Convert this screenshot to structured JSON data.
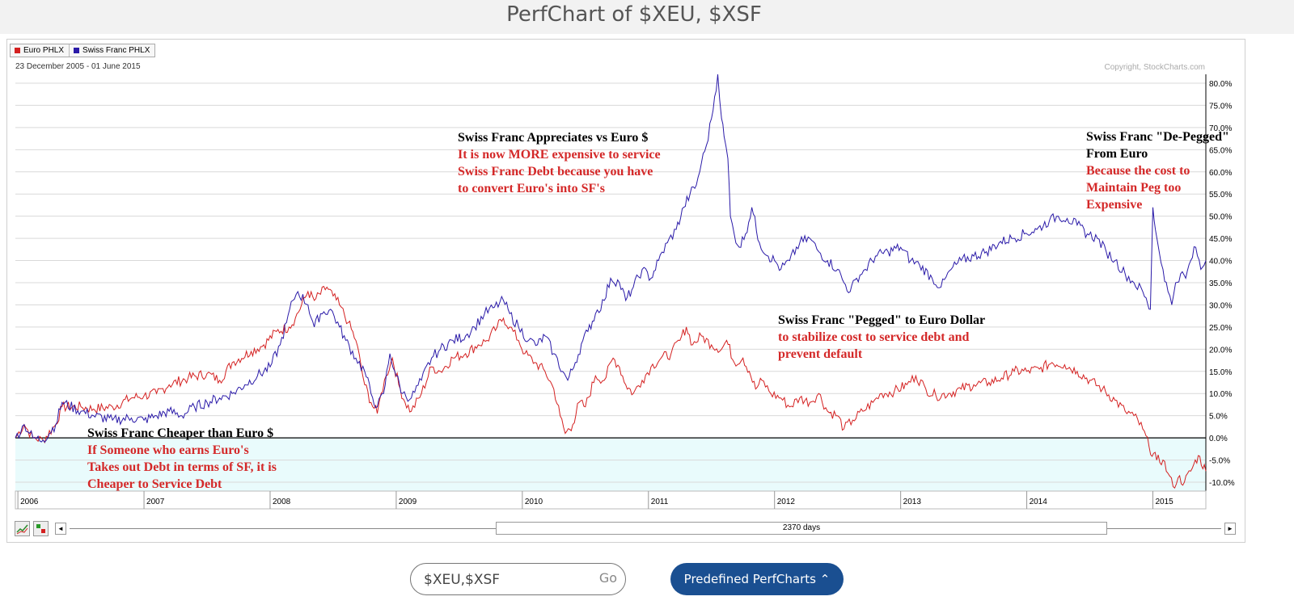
{
  "page_title": "PerfChart of $XEU, $XSF",
  "legend": [
    {
      "label": "Euro PHLX",
      "color": "#d42020"
    },
    {
      "label": "Swiss Franc PHLX",
      "color": "#2a1aa8"
    }
  ],
  "date_range": "23 December 2005 - 01 June 2015",
  "copyright": "Copyright, StockCharts.com",
  "scrollbar": {
    "label": "2370 days",
    "left_arrow": "◄",
    "right_arrow": "►"
  },
  "search": {
    "value": "$XEU,$XSF",
    "go_label": "Go"
  },
  "predefined_button": "Predefined PerfCharts ⌃",
  "annotations": [
    {
      "lines": [
        {
          "text": "Swiss Franc Cheaper than Euro $",
          "color": "#000000"
        },
        {
          "text": "If Someone who earns Euro's",
          "color": "#d42828"
        },
        {
          "text": "Takes out Debt in terms of SF, it is",
          "color": "#d42828"
        },
        {
          "text": "Cheaper to Service Debt",
          "color": "#d42828"
        }
      ]
    },
    {
      "lines": [
        {
          "text": "Swiss Franc Appreciates vs Euro $",
          "color": "#000000"
        },
        {
          "text": "It is now MORE expensive to service",
          "color": "#d42828"
        },
        {
          "text": "Swiss Franc Debt because you have",
          "color": "#d42828"
        },
        {
          "text": "to convert Euro's into SF's",
          "color": "#d42828"
        }
      ]
    },
    {
      "lines": [
        {
          "text": "Swiss Franc \"Pegged\" to Euro Dollar",
          "color": "#000000"
        },
        {
          "text": "to stabilize cost to service debt and",
          "color": "#d42828"
        },
        {
          "text": "prevent default",
          "color": "#d42828"
        }
      ]
    },
    {
      "lines": [
        {
          "text": "Swiss Franc \"De-Pegged\"",
          "color": "#000000"
        },
        {
          "text": "From Euro",
          "color": "#000000"
        },
        {
          "text": "Because the cost to",
          "color": "#d42828"
        },
        {
          "text": "Maintain Peg too",
          "color": "#d42828"
        },
        {
          "text": "Expensive",
          "color": "#d42828"
        }
      ]
    }
  ],
  "chart_data": {
    "type": "line",
    "y_unit": "%",
    "ylim": [
      -12,
      82
    ],
    "y_ticks": [
      -10,
      -5,
      0,
      5,
      10,
      15,
      20,
      25,
      30,
      35,
      40,
      45,
      50,
      55,
      60,
      65,
      70,
      75,
      80
    ],
    "y_tick_labels": [
      "-10.0%",
      "-5.0%",
      "0.0%",
      "5.0%",
      "10.0%",
      "15.0%",
      "20.0%",
      "25.0%",
      "30.0%",
      "35.0%",
      "40.0%",
      "45.0%",
      "50.0%",
      "55.0%",
      "60.0%",
      "65.0%",
      "70.0%",
      "75.0%",
      "80.0%"
    ],
    "xlim": [
      2005.98,
      2015.42
    ],
    "x_tick_labels": [
      "2006",
      "2007",
      "2008",
      "2009",
      "2010",
      "2011",
      "2012",
      "2013",
      "2014",
      "2015"
    ],
    "x_ticks": [
      2006.0,
      2007.0,
      2008.0,
      2009.0,
      2010.0,
      2011.0,
      2012.0,
      2013.0,
      2014.0,
      2015.0
    ],
    "grid": true,
    "legend_position": "top-left",
    "colors": {
      "background_above": "#ffffff",
      "background_below": "#e9fbfc",
      "grid": "#d9d9d9",
      "zero_line": "#000000"
    },
    "series": [
      {
        "name": "Euro PHLX",
        "color": "#d42020",
        "points": [
          [
            2005.98,
            0
          ],
          [
            2006.05,
            3
          ],
          [
            2006.12,
            0
          ],
          [
            2006.2,
            -0.5
          ],
          [
            2006.3,
            3
          ],
          [
            2006.35,
            7
          ],
          [
            2006.5,
            7
          ],
          [
            2006.6,
            6.5
          ],
          [
            2006.75,
            7
          ],
          [
            2006.9,
            9
          ],
          [
            2007.0,
            9.5
          ],
          [
            2007.1,
            10
          ],
          [
            2007.2,
            12
          ],
          [
            2007.35,
            13.5
          ],
          [
            2007.5,
            14.5
          ],
          [
            2007.6,
            13
          ],
          [
            2007.7,
            17
          ],
          [
            2007.85,
            19.5
          ],
          [
            2007.95,
            21
          ],
          [
            2008.05,
            24
          ],
          [
            2008.15,
            25
          ],
          [
            2008.2,
            27
          ],
          [
            2008.3,
            33
          ],
          [
            2008.35,
            31
          ],
          [
            2008.45,
            34
          ],
          [
            2008.5,
            32
          ],
          [
            2008.55,
            30
          ],
          [
            2008.62,
            26
          ],
          [
            2008.68,
            22
          ],
          [
            2008.75,
            12
          ],
          [
            2008.8,
            8
          ],
          [
            2008.85,
            5.5
          ],
          [
            2008.88,
            10
          ],
          [
            2008.92,
            14
          ],
          [
            2008.97,
            18
          ],
          [
            2009.02,
            12
          ],
          [
            2009.07,
            8
          ],
          [
            2009.12,
            6
          ],
          [
            2009.2,
            10
          ],
          [
            2009.28,
            16
          ],
          [
            2009.35,
            15
          ],
          [
            2009.45,
            18
          ],
          [
            2009.55,
            19
          ],
          [
            2009.65,
            21
          ],
          [
            2009.72,
            22
          ],
          [
            2009.8,
            25
          ],
          [
            2009.85,
            27
          ],
          [
            2009.9,
            25
          ],
          [
            2009.97,
            22
          ],
          [
            2010.02,
            19
          ],
          [
            2010.1,
            17
          ],
          [
            2010.18,
            15
          ],
          [
            2010.25,
            11
          ],
          [
            2010.3,
            5
          ],
          [
            2010.34,
            1
          ],
          [
            2010.4,
            3
          ],
          [
            2010.45,
            8
          ],
          [
            2010.5,
            7
          ],
          [
            2010.58,
            14
          ],
          [
            2010.65,
            13
          ],
          [
            2010.72,
            18
          ],
          [
            2010.77,
            16
          ],
          [
            2010.82,
            12
          ],
          [
            2010.88,
            10
          ],
          [
            2010.95,
            13
          ],
          [
            2011.02,
            16
          ],
          [
            2011.1,
            18
          ],
          [
            2011.18,
            19
          ],
          [
            2011.25,
            22
          ],
          [
            2011.3,
            25
          ],
          [
            2011.35,
            21
          ],
          [
            2011.42,
            23
          ],
          [
            2011.5,
            21
          ],
          [
            2011.58,
            20
          ],
          [
            2011.62,
            22
          ],
          [
            2011.68,
            17
          ],
          [
            2011.75,
            18
          ],
          [
            2011.8,
            15
          ],
          [
            2011.85,
            11
          ],
          [
            2011.9,
            13
          ],
          [
            2011.97,
            10
          ],
          [
            2012.05,
            9
          ],
          [
            2012.12,
            7
          ],
          [
            2012.2,
            9
          ],
          [
            2012.28,
            8
          ],
          [
            2012.35,
            10
          ],
          [
            2012.42,
            6
          ],
          [
            2012.5,
            5
          ],
          [
            2012.55,
            2
          ],
          [
            2012.62,
            4
          ],
          [
            2012.7,
            6
          ],
          [
            2012.78,
            8
          ],
          [
            2012.85,
            10
          ],
          [
            2012.95,
            10.5
          ],
          [
            2013.05,
            12
          ],
          [
            2013.12,
            14
          ],
          [
            2013.2,
            11
          ],
          [
            2013.28,
            9.5
          ],
          [
            2013.38,
            10
          ],
          [
            2013.48,
            11
          ],
          [
            2013.58,
            12
          ],
          [
            2013.7,
            12.5
          ],
          [
            2013.8,
            13.5
          ],
          [
            2013.9,
            15
          ],
          [
            2014.0,
            15
          ],
          [
            2014.1,
            15.5
          ],
          [
            2014.2,
            17
          ],
          [
            2014.3,
            16.5
          ],
          [
            2014.4,
            15
          ],
          [
            2014.5,
            13
          ],
          [
            2014.6,
            11
          ],
          [
            2014.7,
            8.5
          ],
          [
            2014.78,
            6
          ],
          [
            2014.85,
            5
          ],
          [
            2014.92,
            2
          ],
          [
            2014.97,
            -2
          ],
          [
            2015.03,
            -5
          ],
          [
            2015.08,
            -5
          ],
          [
            2015.12,
            -8
          ],
          [
            2015.16,
            -11
          ],
          [
            2015.2,
            -9
          ],
          [
            2015.25,
            -10
          ],
          [
            2015.3,
            -7.5
          ],
          [
            2015.36,
            -4
          ],
          [
            2015.42,
            -7.5
          ]
        ]
      },
      {
        "name": "Swiss Franc PHLX",
        "color": "#2a1aa8",
        "points": [
          [
            2005.98,
            0
          ],
          [
            2006.05,
            3
          ],
          [
            2006.12,
            0
          ],
          [
            2006.2,
            -0.5
          ],
          [
            2006.3,
            3
          ],
          [
            2006.35,
            8
          ],
          [
            2006.5,
            6
          ],
          [
            2006.6,
            5
          ],
          [
            2006.75,
            4
          ],
          [
            2006.9,
            4.5
          ],
          [
            2007.0,
            4
          ],
          [
            2007.1,
            5
          ],
          [
            2007.2,
            6
          ],
          [
            2007.3,
            5
          ],
          [
            2007.4,
            7
          ],
          [
            2007.5,
            8
          ],
          [
            2007.6,
            9
          ],
          [
            2007.7,
            10
          ],
          [
            2007.8,
            12
          ],
          [
            2007.9,
            14
          ],
          [
            2008.0,
            16
          ],
          [
            2008.08,
            21
          ],
          [
            2008.13,
            26
          ],
          [
            2008.18,
            31
          ],
          [
            2008.22,
            33
          ],
          [
            2008.3,
            30
          ],
          [
            2008.35,
            25
          ],
          [
            2008.4,
            28
          ],
          [
            2008.48,
            29
          ],
          [
            2008.55,
            25
          ],
          [
            2008.6,
            22
          ],
          [
            2008.68,
            18
          ],
          [
            2008.75,
            15
          ],
          [
            2008.8,
            10
          ],
          [
            2008.85,
            7
          ],
          [
            2008.9,
            10
          ],
          [
            2008.95,
            19
          ],
          [
            2009.0,
            14
          ],
          [
            2009.05,
            10
          ],
          [
            2009.12,
            9
          ],
          [
            2009.2,
            13
          ],
          [
            2009.28,
            18
          ],
          [
            2009.35,
            20
          ],
          [
            2009.45,
            22
          ],
          [
            2009.55,
            23
          ],
          [
            2009.62,
            25
          ],
          [
            2009.7,
            28
          ],
          [
            2009.78,
            29.5
          ],
          [
            2009.85,
            31
          ],
          [
            2009.9,
            28
          ],
          [
            2009.97,
            25
          ],
          [
            2010.05,
            22
          ],
          [
            2010.12,
            21
          ],
          [
            2010.18,
            23
          ],
          [
            2010.25,
            19
          ],
          [
            2010.32,
            15
          ],
          [
            2010.36,
            13
          ],
          [
            2010.42,
            17
          ],
          [
            2010.48,
            22
          ],
          [
            2010.52,
            24
          ],
          [
            2010.58,
            28
          ],
          [
            2010.65,
            31
          ],
          [
            2010.7,
            36
          ],
          [
            2010.77,
            35
          ],
          [
            2010.82,
            31
          ],
          [
            2010.88,
            34
          ],
          [
            2010.95,
            38
          ],
          [
            2011.02,
            36
          ],
          [
            2011.08,
            40
          ],
          [
            2011.15,
            44
          ],
          [
            2011.22,
            47
          ],
          [
            2011.28,
            52
          ],
          [
            2011.33,
            55
          ],
          [
            2011.38,
            57
          ],
          [
            2011.42,
            62
          ],
          [
            2011.46,
            66
          ],
          [
            2011.5,
            72
          ],
          [
            2011.55,
            82
          ],
          [
            2011.58,
            72
          ],
          [
            2011.6,
            68
          ],
          [
            2011.63,
            63
          ],
          [
            2011.65,
            50
          ],
          [
            2011.68,
            46
          ],
          [
            2011.72,
            43
          ],
          [
            2011.77,
            46
          ],
          [
            2011.82,
            52
          ],
          [
            2011.88,
            44
          ],
          [
            2011.95,
            41
          ],
          [
            2012.0,
            40
          ],
          [
            2012.05,
            38
          ],
          [
            2012.12,
            40
          ],
          [
            2012.2,
            44
          ],
          [
            2012.28,
            45
          ],
          [
            2012.35,
            42
          ],
          [
            2012.42,
            40
          ],
          [
            2012.5,
            38
          ],
          [
            2012.55,
            35
          ],
          [
            2012.6,
            33
          ],
          [
            2012.65,
            36
          ],
          [
            2012.72,
            38
          ],
          [
            2012.8,
            41
          ],
          [
            2012.9,
            42
          ],
          [
            2013.0,
            43
          ],
          [
            2013.08,
            40
          ],
          [
            2013.15,
            39
          ],
          [
            2013.25,
            36
          ],
          [
            2013.32,
            34
          ],
          [
            2013.4,
            38
          ],
          [
            2013.48,
            40
          ],
          [
            2013.58,
            41
          ],
          [
            2013.68,
            42
          ],
          [
            2013.78,
            44
          ],
          [
            2013.88,
            45
          ],
          [
            2013.98,
            46
          ],
          [
            2014.08,
            47
          ],
          [
            2014.18,
            49
          ],
          [
            2014.25,
            50
          ],
          [
            2014.32,
            49.5
          ],
          [
            2014.4,
            48
          ],
          [
            2014.48,
            46
          ],
          [
            2014.56,
            45
          ],
          [
            2014.63,
            42
          ],
          [
            2014.7,
            40
          ],
          [
            2014.78,
            37
          ],
          [
            2014.85,
            35
          ],
          [
            2014.92,
            33
          ],
          [
            2014.96,
            30
          ],
          [
            2014.98,
            29
          ],
          [
            2015.0,
            52
          ],
          [
            2015.02,
            47
          ],
          [
            2015.05,
            42
          ],
          [
            2015.08,
            38
          ],
          [
            2015.12,
            33
          ],
          [
            2015.15,
            30
          ],
          [
            2015.18,
            35
          ],
          [
            2015.22,
            37
          ],
          [
            2015.26,
            36
          ],
          [
            2015.3,
            40
          ],
          [
            2015.34,
            43
          ],
          [
            2015.38,
            38
          ],
          [
            2015.42,
            40
          ]
        ]
      }
    ]
  }
}
